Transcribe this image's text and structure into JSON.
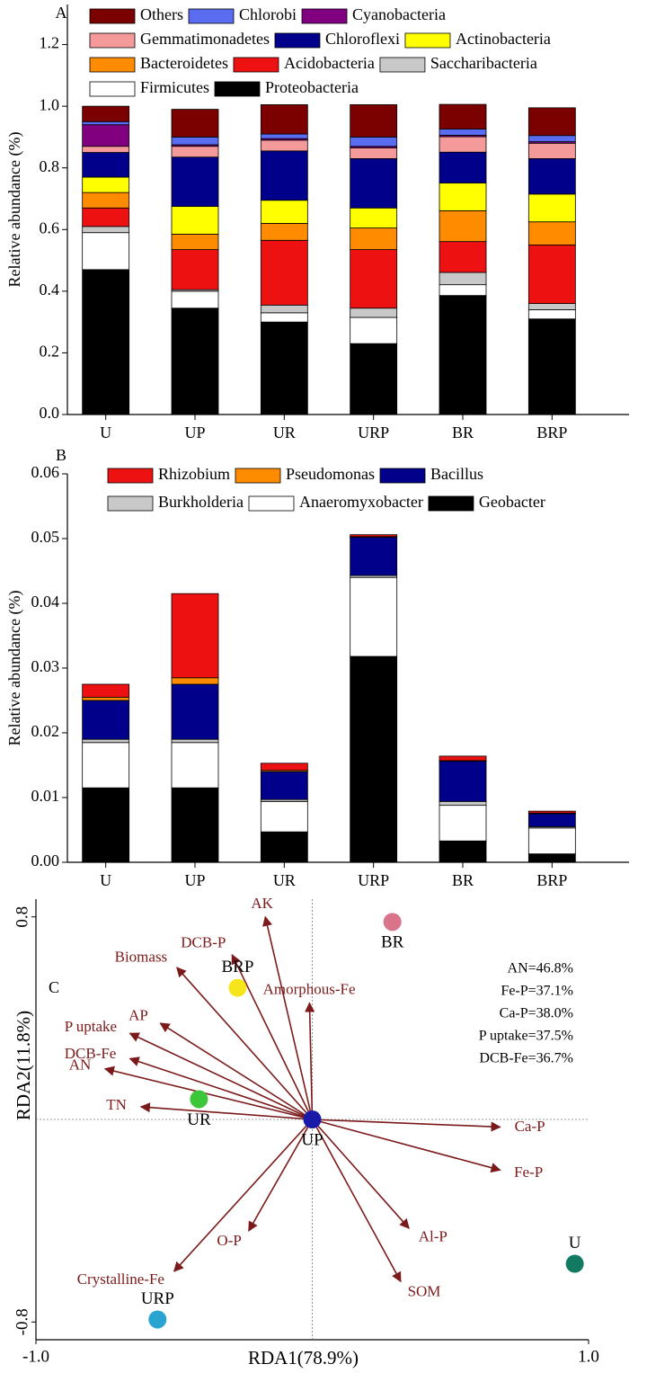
{
  "chart_data": [
    {
      "type": "stacked_bar",
      "panel_label": "A",
      "y_label": "Relative abundance (%)",
      "categories": [
        "U",
        "UP",
        "UR",
        "URP",
        "BR",
        "BRP"
      ],
      "ylim": [
        0,
        1.33
      ],
      "yticks": [
        {
          "value": 0,
          "label": "0.0"
        },
        0.2,
        0.4,
        0.6,
        0.8,
        {
          "value": 1,
          "label": "1.0"
        },
        1.2
      ],
      "series": [
        {
          "name": "Others",
          "color": "#7b0000",
          "values": [
            0.05,
            0.09,
            0.095,
            0.105,
            0.08,
            0.09
          ]
        },
        {
          "name": "Chlorobi",
          "color": "#5a6cf0",
          "values": [
            0.01,
            0.025,
            0.015,
            0.03,
            0.02,
            0.02
          ]
        },
        {
          "name": "Cyanobacteria",
          "color": "#800080",
          "values": [
            0.07,
            0.005,
            0.005,
            0.005,
            0.005,
            0.005
          ]
        },
        {
          "name": "Gemmatimonadetes",
          "color": "#f59a9a",
          "values": [
            0.02,
            0.035,
            0.035,
            0.035,
            0.05,
            0.05
          ]
        },
        {
          "name": "Chloroflexi",
          "color": "#00008b",
          "values": [
            0.08,
            0.16,
            0.16,
            0.16,
            0.1,
            0.115
          ]
        },
        {
          "name": "Actinobacteria",
          "color": "#ffff00",
          "values": [
            0.05,
            0.09,
            0.075,
            0.065,
            0.09,
            0.09
          ]
        },
        {
          "name": "Bacteroidetes",
          "color": "#ff8c00",
          "values": [
            0.05,
            0.05,
            0.055,
            0.07,
            0.1,
            0.075
          ]
        },
        {
          "name": "Acidobacteria",
          "color": "#ee1111",
          "values": [
            0.06,
            0.13,
            0.21,
            0.19,
            0.1,
            0.19
          ]
        },
        {
          "name": "Saccharibacteria",
          "color": "#c8c8c8",
          "values": [
            0.02,
            0.005,
            0.025,
            0.03,
            0.04,
            0.02
          ]
        },
        {
          "name": "Firmicutes",
          "color": "#ffffff",
          "values": [
            0.12,
            0.055,
            0.03,
            0.085,
            0.035,
            0.03
          ]
        },
        {
          "name": "Proteobacteria",
          "color": "#000000",
          "values": [
            0.47,
            0.345,
            0.3,
            0.23,
            0.386,
            0.31
          ]
        }
      ]
    },
    {
      "type": "stacked_bar",
      "panel_label": "B",
      "y_label": "Relative abundance (%)",
      "categories": [
        "U",
        "UP",
        "UR",
        "URP",
        "BR",
        "BRP"
      ],
      "ylim": [
        0,
        0.06
      ],
      "yticks": [
        {
          "value": 0,
          "label": "0.00"
        },
        0.01,
        0.02,
        0.03,
        0.04,
        0.05,
        0.06
      ],
      "series": [
        {
          "name": "Rhizobium",
          "color": "#ee1111",
          "values": [
            0.002,
            0.013,
            0.0011,
            0.0003,
            0.0007,
            0.0003
          ]
        },
        {
          "name": "Pseudomonas",
          "color": "#ff8c00",
          "values": [
            0.0005,
            0.001,
            0.0002,
            0.0001,
            0.0001,
            0.0001
          ]
        },
        {
          "name": "Bacillus",
          "color": "#00008b",
          "values": [
            0.006,
            0.0085,
            0.0043,
            0.0059,
            0.0062,
            0.002
          ]
        },
        {
          "name": "Burkholderia",
          "color": "#c8c8c8",
          "values": [
            0.0005,
            0.0005,
            0.0003,
            0.0003,
            0.0006,
            0.0002
          ]
        },
        {
          "name": "Anaeromyxobacter",
          "color": "#ffffff",
          "values": [
            0.007,
            0.007,
            0.0047,
            0.0122,
            0.0055,
            0.004
          ]
        },
        {
          "name": "Geobacter",
          "color": "#000000",
          "values": [
            0.0115,
            0.0115,
            0.0047,
            0.0318,
            0.0033,
            0.0013
          ]
        }
      ]
    },
    {
      "type": "biplot",
      "panel_label": "C",
      "x_label": "RDA1(78.9%)",
      "y_label": "RDA2(11.8%)",
      "xlim": [
        -1,
        1
      ],
      "ylim": [
        -0.87,
        0.87
      ],
      "xticks": [
        {
          "value": -1,
          "label": "-1.0"
        },
        {
          "value": 1,
          "label": "1.0"
        }
      ],
      "yticks": [
        -0.8,
        0.8
      ],
      "vector_color": "#7b1a1a",
      "points": [
        {
          "name": "BR",
          "color": "#d9748a",
          "x": 0.29,
          "y": 0.78
        },
        {
          "name": "BRP",
          "color": "#f7e51b",
          "x": -0.27,
          "y": 0.52
        },
        {
          "name": "UR",
          "color": "#3ec63a",
          "x": -0.41,
          "y": 0.08
        },
        {
          "name": "UP",
          "color": "#1a1aa8",
          "x": 0.0,
          "y": 0.0
        },
        {
          "name": "U",
          "color": "#117a60",
          "x": 0.95,
          "y": -0.57
        },
        {
          "name": "URP",
          "color": "#29a3cf",
          "x": -0.56,
          "y": -0.79
        }
      ],
      "vectors": [
        {
          "name": "AK",
          "x": -0.17,
          "y": 0.8
        },
        {
          "name": "DCB-P",
          "x": -0.29,
          "y": 0.65
        },
        {
          "name": "Biomass",
          "x": -0.49,
          "y": 0.6
        },
        {
          "name": "Amorphous-Fe",
          "x": -0.01,
          "y": 0.46
        },
        {
          "name": "AP",
          "x": -0.55,
          "y": 0.38
        },
        {
          "name": "P uptake",
          "x": -0.66,
          "y": 0.34
        },
        {
          "name": "DCB-Fe",
          "x": -0.66,
          "y": 0.24
        },
        {
          "name": "AN",
          "x": -0.75,
          "y": 0.2
        },
        {
          "name": "TN",
          "x": -0.62,
          "y": 0.05
        },
        {
          "name": "Ca-P",
          "x": 0.68,
          "y": -0.03
        },
        {
          "name": "Fe-P",
          "x": 0.68,
          "y": -0.2
        },
        {
          "name": "Al-P",
          "x": 0.35,
          "y": -0.43
        },
        {
          "name": "SOM",
          "x": 0.32,
          "y": -0.64
        },
        {
          "name": "O-P",
          "x": -0.23,
          "y": -0.44
        },
        {
          "name": "Crystalline-Fe",
          "x": -0.5,
          "y": -0.6
        }
      ],
      "annotations": [
        "AN=46.8%",
        "Fe-P=37.1%",
        "Ca-P=38.0%",
        "P uptake=37.5%",
        "DCB-Fe=36.7%"
      ]
    }
  ]
}
